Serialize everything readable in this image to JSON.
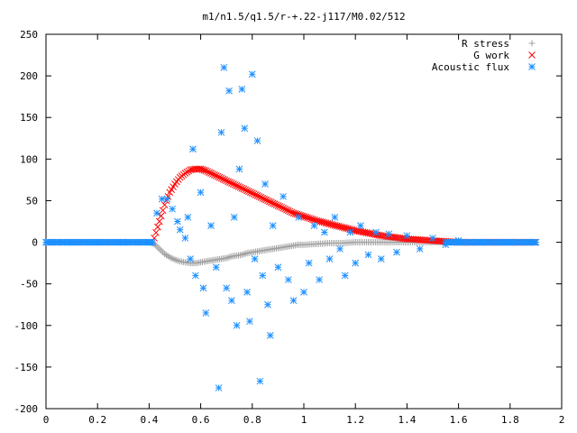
{
  "chart_data": {
    "type": "scatter",
    "title": "m1/n1.5/q1.5/r-+.22-j117/M0.02/512",
    "xlabel": "",
    "ylabel": "",
    "xlim": [
      0,
      2
    ],
    "ylim": [
      -200,
      250
    ],
    "xticks": [
      "0",
      "0.2",
      "0.4",
      "0.6",
      "0.8",
      "1",
      "1.2",
      "1.4",
      "1.6",
      "1.8",
      "2"
    ],
    "yticks": [
      "250",
      "200",
      "150",
      "100",
      "50",
      "0",
      "-50",
      "-100",
      "-150",
      "-200"
    ],
    "grid": false,
    "legend_position": "top-right",
    "series": [
      {
        "name": "R stress",
        "marker": "plus",
        "color": "#a0a0a0",
        "points": [
          [
            0.0,
            0
          ],
          [
            0.1,
            0
          ],
          [
            0.2,
            0
          ],
          [
            0.3,
            0
          ],
          [
            0.4,
            0
          ],
          [
            0.42,
            -2
          ],
          [
            0.44,
            -8
          ],
          [
            0.46,
            -14
          ],
          [
            0.48,
            -18
          ],
          [
            0.5,
            -21
          ],
          [
            0.52,
            -23
          ],
          [
            0.54,
            -24
          ],
          [
            0.56,
            -25
          ],
          [
            0.58,
            -25
          ],
          [
            0.6,
            -24
          ],
          [
            0.62,
            -23
          ],
          [
            0.64,
            -22
          ],
          [
            0.66,
            -21
          ],
          [
            0.68,
            -20
          ],
          [
            0.7,
            -19
          ],
          [
            0.72,
            -17
          ],
          [
            0.74,
            -16
          ],
          [
            0.76,
            -15
          ],
          [
            0.78,
            -13
          ],
          [
            0.8,
            -12
          ],
          [
            0.82,
            -11
          ],
          [
            0.84,
            -10
          ],
          [
            0.86,
            -9
          ],
          [
            0.88,
            -8
          ],
          [
            0.9,
            -7
          ],
          [
            0.92,
            -6
          ],
          [
            0.94,
            -5
          ],
          [
            0.96,
            -4
          ],
          [
            0.98,
            -3
          ],
          [
            1.0,
            -3
          ],
          [
            1.05,
            -2
          ],
          [
            1.1,
            -1
          ],
          [
            1.15,
            -1
          ],
          [
            1.2,
            0
          ],
          [
            1.3,
            0
          ],
          [
            1.4,
            0
          ],
          [
            1.5,
            0
          ],
          [
            1.6,
            0
          ],
          [
            1.7,
            0
          ],
          [
            1.8,
            0
          ],
          [
            1.9,
            0
          ]
        ]
      },
      {
        "name": "G work",
        "marker": "cross",
        "color": "#ff0000",
        "points": [
          [
            0.42,
            5
          ],
          [
            0.44,
            25
          ],
          [
            0.46,
            45
          ],
          [
            0.48,
            60
          ],
          [
            0.5,
            70
          ],
          [
            0.52,
            78
          ],
          [
            0.54,
            83
          ],
          [
            0.56,
            87
          ],
          [
            0.58,
            88
          ],
          [
            0.6,
            88
          ],
          [
            0.62,
            86
          ],
          [
            0.64,
            83
          ],
          [
            0.66,
            80
          ],
          [
            0.68,
            77
          ],
          [
            0.7,
            74
          ],
          [
            0.72,
            71
          ],
          [
            0.74,
            68
          ],
          [
            0.76,
            65
          ],
          [
            0.78,
            62
          ],
          [
            0.8,
            59
          ],
          [
            0.82,
            56
          ],
          [
            0.84,
            53
          ],
          [
            0.86,
            50
          ],
          [
            0.88,
            47
          ],
          [
            0.9,
            44
          ],
          [
            0.92,
            41
          ],
          [
            0.94,
            38
          ],
          [
            0.96,
            35
          ],
          [
            0.98,
            33
          ],
          [
            1.0,
            31
          ],
          [
            1.05,
            26
          ],
          [
            1.1,
            22
          ],
          [
            1.15,
            18
          ],
          [
            1.2,
            14
          ],
          [
            1.25,
            11
          ],
          [
            1.3,
            8
          ],
          [
            1.35,
            6
          ],
          [
            1.4,
            4
          ],
          [
            1.45,
            3
          ],
          [
            1.5,
            2
          ],
          [
            1.55,
            1
          ],
          [
            1.6,
            0
          ],
          [
            1.7,
            0
          ],
          [
            1.8,
            0
          ],
          [
            1.9,
            0
          ]
        ]
      },
      {
        "name": "Acoustic flux",
        "marker": "star",
        "color": "#1e90ff",
        "points": [
          [
            0.0,
            0
          ],
          [
            0.1,
            0
          ],
          [
            0.2,
            0
          ],
          [
            0.3,
            0
          ],
          [
            0.4,
            0
          ],
          [
            0.43,
            35
          ],
          [
            0.45,
            52
          ],
          [
            0.47,
            52
          ],
          [
            0.49,
            40
          ],
          [
            0.51,
            25
          ],
          [
            0.52,
            15
          ],
          [
            0.54,
            5
          ],
          [
            0.55,
            30
          ],
          [
            0.56,
            -20
          ],
          [
            0.57,
            112
          ],
          [
            0.58,
            -40
          ],
          [
            0.6,
            60
          ],
          [
            0.61,
            -55
          ],
          [
            0.62,
            -85
          ],
          [
            0.64,
            20
          ],
          [
            0.66,
            -30
          ],
          [
            0.67,
            -175
          ],
          [
            0.68,
            132
          ],
          [
            0.69,
            210
          ],
          [
            0.7,
            -55
          ],
          [
            0.71,
            182
          ],
          [
            0.72,
            -70
          ],
          [
            0.73,
            30
          ],
          [
            0.74,
            -100
          ],
          [
            0.75,
            88
          ],
          [
            0.76,
            184
          ],
          [
            0.77,
            137
          ],
          [
            0.78,
            -60
          ],
          [
            0.79,
            -95
          ],
          [
            0.8,
            202
          ],
          [
            0.81,
            -20
          ],
          [
            0.82,
            122
          ],
          [
            0.83,
            -167
          ],
          [
            0.84,
            -40
          ],
          [
            0.85,
            70
          ],
          [
            0.86,
            -75
          ],
          [
            0.87,
            -112
          ],
          [
            0.88,
            20
          ],
          [
            0.9,
            -30
          ],
          [
            0.92,
            55
          ],
          [
            0.94,
            -45
          ],
          [
            0.96,
            -70
          ],
          [
            0.98,
            30
          ],
          [
            1.0,
            -60
          ],
          [
            1.02,
            -25
          ],
          [
            1.04,
            20
          ],
          [
            1.06,
            -45
          ],
          [
            1.08,
            12
          ],
          [
            1.1,
            -20
          ],
          [
            1.12,
            30
          ],
          [
            1.14,
            -8
          ],
          [
            1.16,
            -40
          ],
          [
            1.18,
            12
          ],
          [
            1.2,
            -25
          ],
          [
            1.22,
            20
          ],
          [
            1.25,
            -15
          ],
          [
            1.28,
            12
          ],
          [
            1.3,
            -20
          ],
          [
            1.33,
            10
          ],
          [
            1.36,
            -12
          ],
          [
            1.4,
            8
          ],
          [
            1.45,
            -8
          ],
          [
            1.5,
            5
          ],
          [
            1.55,
            -3
          ],
          [
            1.6,
            2
          ],
          [
            1.7,
            0
          ],
          [
            1.8,
            0
          ],
          [
            1.9,
            0
          ]
        ]
      }
    ]
  }
}
